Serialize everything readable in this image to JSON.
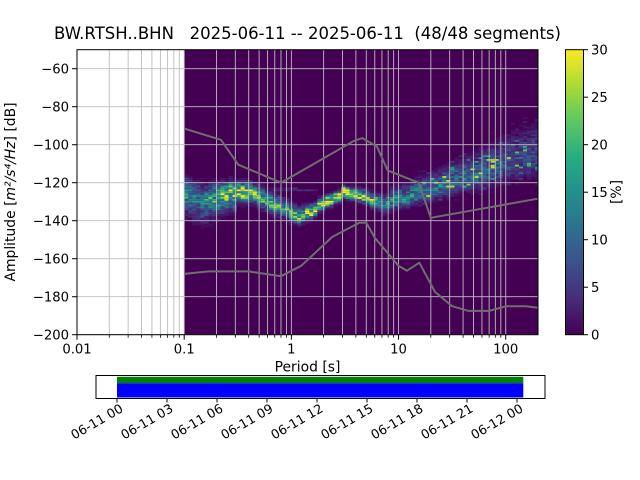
{
  "chart_data": {
    "type": "heatmap",
    "title": "BW.RTSH..BHN   2025-06-11 -- 2025-06-11  (48/48 segments)",
    "xlabel": "Period [s]",
    "ylabel": "Amplitude [m²/s⁴/Hz] [dB]",
    "ylabel_parts": {
      "prefix": "Amplitude [",
      "math": "m²/s⁴/Hz",
      "suffix": "] [dB]"
    },
    "colorbar_label": "[%]",
    "x_axis": {
      "scale": "log",
      "min": 0.01,
      "max": 200,
      "major_ticks": [
        0.01,
        0.1,
        1,
        10,
        100
      ],
      "tick_labels": [
        "0.01",
        "0.1",
        "1",
        "10",
        "100"
      ]
    },
    "y_axis": {
      "min": -200,
      "max": -50,
      "ticks": [
        -60,
        -80,
        -100,
        -120,
        -140,
        -160,
        -180,
        -200
      ],
      "tick_labels": [
        "−60",
        "−80",
        "−100",
        "−120",
        "−140",
        "−160",
        "−180",
        "−200"
      ]
    },
    "colorbar": {
      "min": 0,
      "max": 30,
      "ticks": [
        0,
        5,
        10,
        15,
        20,
        25,
        30
      ],
      "tick_labels": [
        "0",
        "5",
        "10",
        "15",
        "20",
        "25",
        "30"
      ]
    },
    "histogram": {
      "period_range": [
        0.1,
        200
      ],
      "bins_per_octave": 8,
      "db_bin_width": 1,
      "mode_curve": [
        [
          0.1,
          -123.5
        ],
        [
          0.125,
          -127
        ],
        [
          0.16,
          -129.5
        ],
        [
          0.2,
          -127.5
        ],
        [
          0.25,
          -125.5
        ],
        [
          0.32,
          -124.8
        ],
        [
          0.42,
          -125.5
        ],
        [
          0.55,
          -128.5
        ],
        [
          0.7,
          -131.5
        ],
        [
          0.9,
          -134.5
        ],
        [
          1.15,
          -137
        ],
        [
          1.35,
          -136.5
        ],
        [
          1.7,
          -133.5
        ],
        [
          2.0,
          -131
        ],
        [
          2.5,
          -128
        ],
        [
          3.2,
          -124.8
        ],
        [
          4.0,
          -125.5
        ],
        [
          4.8,
          -127.5
        ],
        [
          5.5,
          -128.5
        ],
        [
          6.5,
          -130.5
        ],
        [
          8.0,
          -131.5
        ],
        [
          10.0,
          -129.5
        ],
        [
          13.0,
          -127
        ],
        [
          18.0,
          -124.5
        ],
        [
          26.0,
          -121.8
        ],
        [
          40.0,
          -118.5
        ],
        [
          60.0,
          -115
        ],
        [
          90.0,
          -111.5
        ],
        [
          130,
          -108.5
        ],
        [
          200,
          -105.5
        ]
      ],
      "spread_curve": [
        [
          0.1,
          4.2
        ],
        [
          0.15,
          4.5
        ],
        [
          0.25,
          3.2
        ],
        [
          0.4,
          3.0
        ],
        [
          0.7,
          3.0
        ],
        [
          1.0,
          2.6
        ],
        [
          1.5,
          2.0
        ],
        [
          2.5,
          1.7
        ],
        [
          4.0,
          1.8
        ],
        [
          6.0,
          2.2
        ],
        [
          10.0,
          2.6
        ],
        [
          20.0,
          3.0
        ],
        [
          40.0,
          3.8
        ],
        [
          80.0,
          4.8
        ],
        [
          140,
          5.6
        ],
        [
          200,
          6.2
        ]
      ],
      "peak_percent_curve": [
        [
          0.1,
          16
        ],
        [
          0.13,
          12
        ],
        [
          0.18,
          16
        ],
        [
          0.25,
          24
        ],
        [
          0.35,
          26
        ],
        [
          0.5,
          20
        ],
        [
          0.7,
          17
        ],
        [
          0.95,
          18
        ],
        [
          1.2,
          22
        ],
        [
          1.5,
          28
        ],
        [
          2.0,
          29
        ],
        [
          3.0,
          30
        ],
        [
          4.0,
          29
        ],
        [
          5.0,
          23
        ],
        [
          6.5,
          17
        ],
        [
          9.0,
          14
        ],
        [
          13.0,
          13
        ],
        [
          20.0,
          12.5
        ],
        [
          30.0,
          12
        ],
        [
          50.0,
          10.5
        ],
        [
          80.0,
          9
        ],
        [
          130,
          7.5
        ],
        [
          200,
          6.5
        ]
      ],
      "secondary_band": {
        "period_range": [
          0.45,
          1.8
        ],
        "db": -123.5,
        "percent": 3.5
      }
    },
    "noise_models": {
      "color": "#6e6e6e",
      "nhnm": [
        [
          0.1,
          -91.5
        ],
        [
          0.22,
          -97.4
        ],
        [
          0.32,
          -110.5
        ],
        [
          0.8,
          -120.0
        ],
        [
          3.8,
          -98.1
        ],
        [
          4.6,
          -96.5
        ],
        [
          6.3,
          -101.0
        ],
        [
          7.9,
          -113.5
        ],
        [
          15.4,
          -120.0
        ],
        [
          20.0,
          -138.5
        ],
        [
          200,
          -128.4
        ]
      ],
      "nlnm": [
        [
          0.1,
          -168.0
        ],
        [
          0.17,
          -166.7
        ],
        [
          0.4,
          -166.7
        ],
        [
          0.8,
          -169.2
        ],
        [
          1.24,
          -163.7
        ],
        [
          2.4,
          -148.6
        ],
        [
          4.3,
          -141.1
        ],
        [
          5.0,
          -141.1
        ],
        [
          6.0,
          -149.0
        ],
        [
          10.0,
          -163.8
        ],
        [
          12.0,
          -166.3
        ],
        [
          15.6,
          -162.1
        ],
        [
          21.9,
          -177.5
        ],
        [
          31.6,
          -185.0
        ],
        [
          45.0,
          -187.5
        ],
        [
          70.0,
          -187.5
        ],
        [
          101.0,
          -185.0
        ],
        [
          154.0,
          -185.0
        ],
        [
          200,
          -185.8
        ]
      ]
    },
    "colors": {
      "background": "#440154",
      "grid": "#bdbdbd",
      "frame": "#000000",
      "viridis_stops": [
        [
          0,
          [
            68,
            1,
            84
          ]
        ],
        [
          0.125,
          [
            71,
            44,
            122
          ]
        ],
        [
          0.25,
          [
            59,
            81,
            139
          ]
        ],
        [
          0.375,
          [
            44,
            113,
            142
          ]
        ],
        [
          0.5,
          [
            33,
            144,
            141
          ]
        ],
        [
          0.625,
          [
            39,
            173,
            129
          ]
        ],
        [
          0.75,
          [
            92,
            200,
            99
          ]
        ],
        [
          0.875,
          [
            170,
            220,
            50
          ]
        ],
        [
          1,
          [
            253,
            231,
            37
          ]
        ]
      ]
    }
  },
  "timeline": {
    "tick_labels": [
      "06-11 00",
      "06-11 03",
      "06-11 06",
      "06-11 09",
      "06-11 12",
      "06-11 15",
      "06-11 18",
      "06-11 21",
      "06-12 00"
    ],
    "colors": {
      "top": "#008000",
      "bottom": "#0000ff",
      "box_bg": "#ffffff",
      "frame": "#000000"
    }
  }
}
